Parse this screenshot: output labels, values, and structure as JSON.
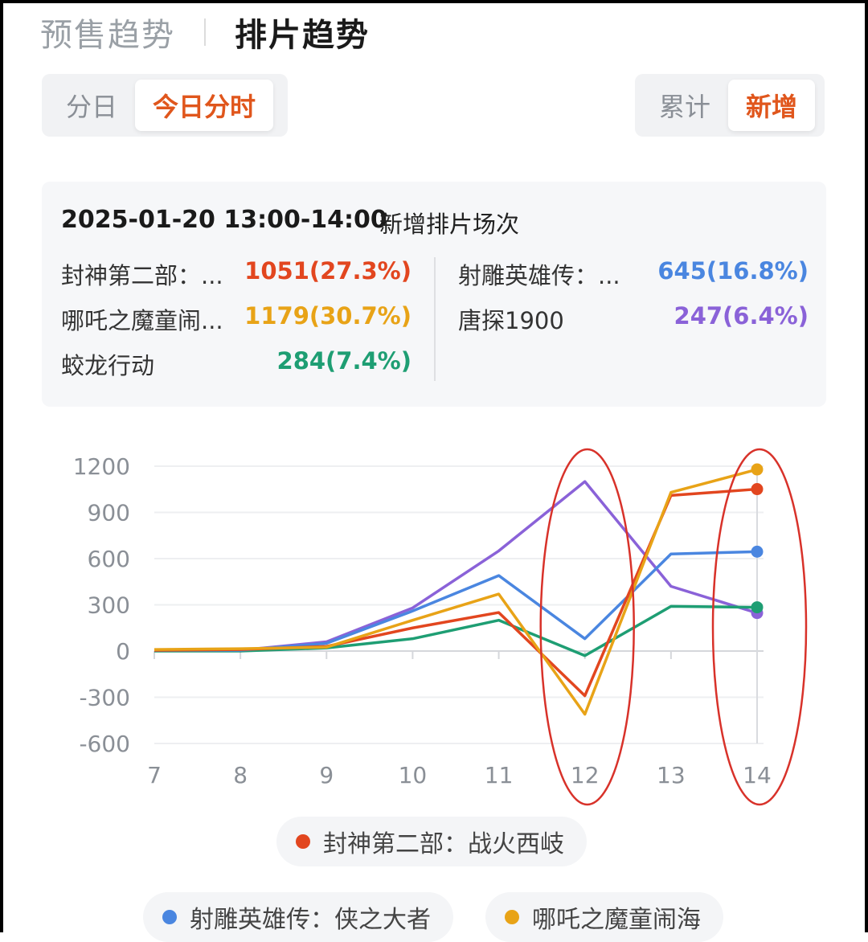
{
  "top_tabs": [
    {
      "label": "预售趋势"
    },
    {
      "label": "排片趋势"
    }
  ],
  "left_segment": [
    {
      "label": "分日"
    },
    {
      "label": "今日分时"
    }
  ],
  "right_segment": [
    {
      "label": "累计"
    },
    {
      "label": "新增"
    }
  ],
  "info": {
    "date_range": "2025-01-20 13:00-14:00",
    "metric": "新增排片场次",
    "items": [
      {
        "name": "封神第二部：...",
        "value": "1051(27.3%)",
        "color": "#e2461f"
      },
      {
        "name": "哪吒之魔童闹...",
        "value": "1179(30.7%)",
        "color": "#e8a317"
      },
      {
        "name": "蛟龙行动",
        "value": "284(7.4%)",
        "color": "#1e9e73"
      },
      {
        "name": "射雕英雄传：...",
        "value": "645(16.8%)",
        "color": "#4a86e0"
      },
      {
        "name": "唐探1900",
        "value": "247(6.4%)",
        "color": "#8a62d8"
      }
    ]
  },
  "chart_data": {
    "type": "line",
    "x": [
      7,
      8,
      9,
      10,
      11,
      12,
      13,
      14
    ],
    "x_tick_labels": [
      "7",
      "8",
      "9",
      "10",
      "11",
      "12",
      "13",
      "14"
    ],
    "y_tick_labels": [
      "1200",
      "900",
      "600",
      "300",
      "0",
      "-300",
      "-600"
    ],
    "ylim": [
      -600,
      1200
    ],
    "yticks": [
      -600,
      -300,
      0,
      300,
      600,
      900,
      1200
    ],
    "grid": true,
    "series": [
      {
        "name": "封神第二部：战火西岐",
        "color": "#e2461f",
        "values": [
          5,
          10,
          30,
          150,
          250,
          -290,
          1010,
          1051
        ]
      },
      {
        "name": "哪吒之魔童闹海",
        "color": "#e8a317",
        "values": [
          10,
          15,
          25,
          200,
          370,
          -410,
          1030,
          1179
        ]
      },
      {
        "name": "射雕英雄传：侠之大者",
        "color": "#4a86e0",
        "values": [
          5,
          5,
          50,
          260,
          490,
          80,
          630,
          645
        ]
      },
      {
        "name": "蛟龙行动",
        "color": "#1e9e73",
        "values": [
          0,
          0,
          20,
          80,
          200,
          -30,
          290,
          284
        ]
      },
      {
        "name": "唐探1900",
        "color": "#8a62d8",
        "values": [
          5,
          5,
          60,
          280,
          650,
          1100,
          420,
          247
        ]
      }
    ],
    "highlight_ellipses_at_x": [
      12,
      14
    ],
    "highlight_color": "#d8322a"
  },
  "legend": [
    {
      "name": "封神第二部：战火西岐",
      "color": "#e2461f"
    },
    {
      "name": "射雕英雄传：侠之大者",
      "color": "#4a86e0"
    },
    {
      "name": "哪吒之魔童闹海",
      "color": "#e8a317"
    }
  ]
}
